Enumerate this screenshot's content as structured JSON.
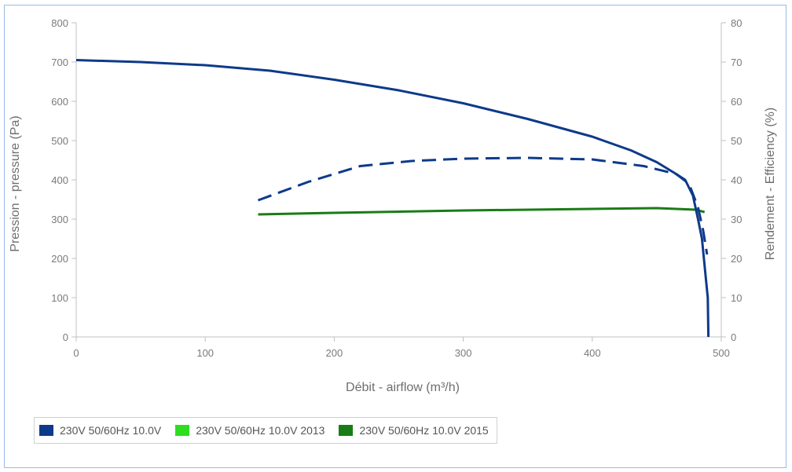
{
  "chart_data": {
    "type": "line",
    "xlabel": "Débit - airflow (m³/h)",
    "ylabel": "Pression - pressure (Pa)",
    "y2label": "Rendement - Efficiency (%)",
    "xlim": [
      0,
      500
    ],
    "ylim": [
      0,
      800
    ],
    "y2lim": [
      0,
      80
    ],
    "x_ticks": [
      "0",
      "100",
      "200",
      "300",
      "400",
      "500"
    ],
    "y_ticks": [
      "0",
      "100",
      "200",
      "300",
      "400",
      "500",
      "600",
      "700",
      "800"
    ],
    "y2_ticks": [
      "0",
      "10",
      "20",
      "30",
      "40",
      "50",
      "60",
      "70",
      "80"
    ],
    "grid": false,
    "legend_position": "bottom-left",
    "series": [
      {
        "name": "230V 50/60Hz 10.0V",
        "color": "#0d3a8a",
        "axis": "left",
        "style": "solid",
        "points": [
          [
            0,
            705
          ],
          [
            50,
            700
          ],
          [
            100,
            692
          ],
          [
            150,
            678
          ],
          [
            200,
            655
          ],
          [
            250,
            628
          ],
          [
            300,
            595
          ],
          [
            350,
            555
          ],
          [
            400,
            510
          ],
          [
            430,
            475
          ],
          [
            450,
            445
          ],
          [
            465,
            415
          ],
          [
            472,
            400
          ],
          [
            478,
            360
          ],
          [
            482,
            300
          ],
          [
            485,
            250
          ],
          [
            488,
            150
          ],
          [
            489.5,
            100
          ],
          [
            490,
            0
          ]
        ]
      },
      {
        "name": "230V 50/60Hz 10.0V 2013",
        "color": "#2dde1f",
        "axis": "right",
        "style": "none",
        "points": []
      },
      {
        "name": "230V 50/60Hz 10.0V 2015",
        "color": "#1a7c16",
        "axis": "right",
        "style": "solid",
        "points": [
          [
            141,
            31.2
          ],
          [
            200,
            31.6
          ],
          [
            300,
            32.2
          ],
          [
            400,
            32.6
          ],
          [
            450,
            32.8
          ],
          [
            480,
            32.4
          ],
          [
            487,
            31.8
          ]
        ]
      },
      {
        "name": "230V 50/60Hz 10.0V",
        "color": "#0d3a8a",
        "axis": "right",
        "style": "dashed",
        "points": [
          [
            141,
            34.8
          ],
          [
            180,
            39.5
          ],
          [
            220,
            43.5
          ],
          [
            260,
            44.8
          ],
          [
            300,
            45.4
          ],
          [
            350,
            45.6
          ],
          [
            400,
            45.2
          ],
          [
            440,
            43.5
          ],
          [
            465,
            41.5
          ],
          [
            475,
            39
          ],
          [
            482,
            33
          ],
          [
            486,
            27
          ],
          [
            489,
            21
          ]
        ]
      }
    ]
  }
}
